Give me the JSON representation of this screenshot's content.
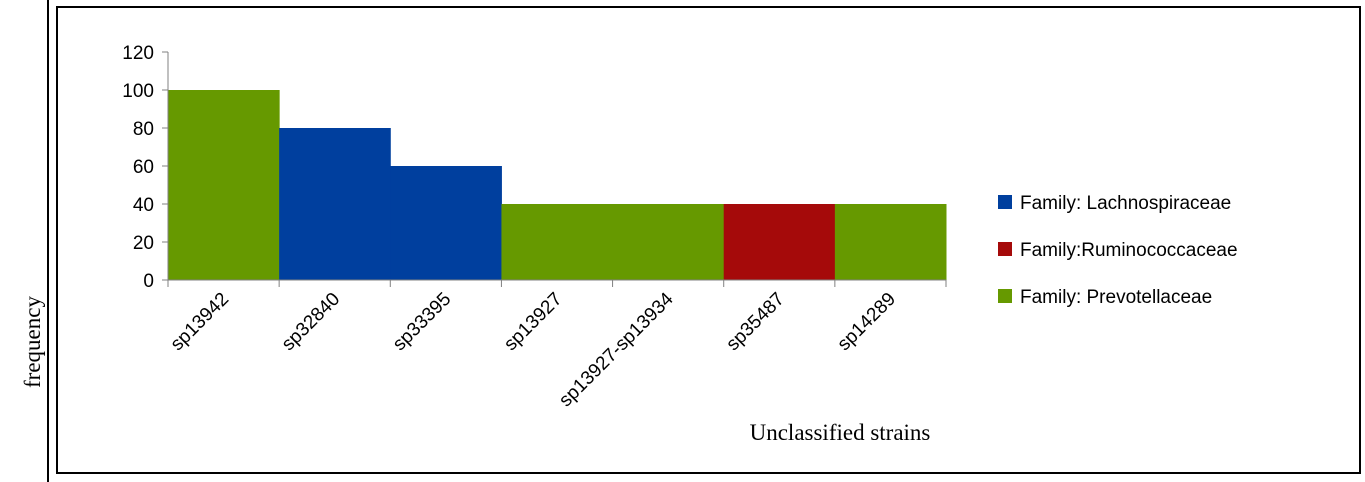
{
  "chart_data": {
    "type": "bar",
    "title": "",
    "xlabel": "Unclassified strains",
    "ylabel": "frequency",
    "ylim": [
      0,
      120
    ],
    "yticks": [
      0,
      20,
      40,
      60,
      80,
      100,
      120
    ],
    "grid": false,
    "legend_position": "right",
    "categories": [
      "sp13942",
      "sp32840",
      "sp33395",
      "sp13927",
      "sp13927-sp13934",
      "sp35487",
      "sp14289"
    ],
    "values": [
      100,
      80,
      60,
      40,
      40,
      40,
      40
    ],
    "families": [
      "Family: Prevotellaceae",
      "Family: Lachnospiraceae",
      "Family: Lachnospiraceae",
      "Family: Prevotellaceae",
      "Family: Prevotellaceae",
      "Family:Ruminococcaceae",
      "Family: Prevotellaceae"
    ],
    "legend": [
      {
        "name": "Family: Lachnospiraceae",
        "color": "#003f9e"
      },
      {
        "name": "Family:Ruminococcaceae",
        "color": "#a50a0a"
      },
      {
        "name": "Family: Prevotellaceae",
        "color": "#669900"
      }
    ]
  }
}
